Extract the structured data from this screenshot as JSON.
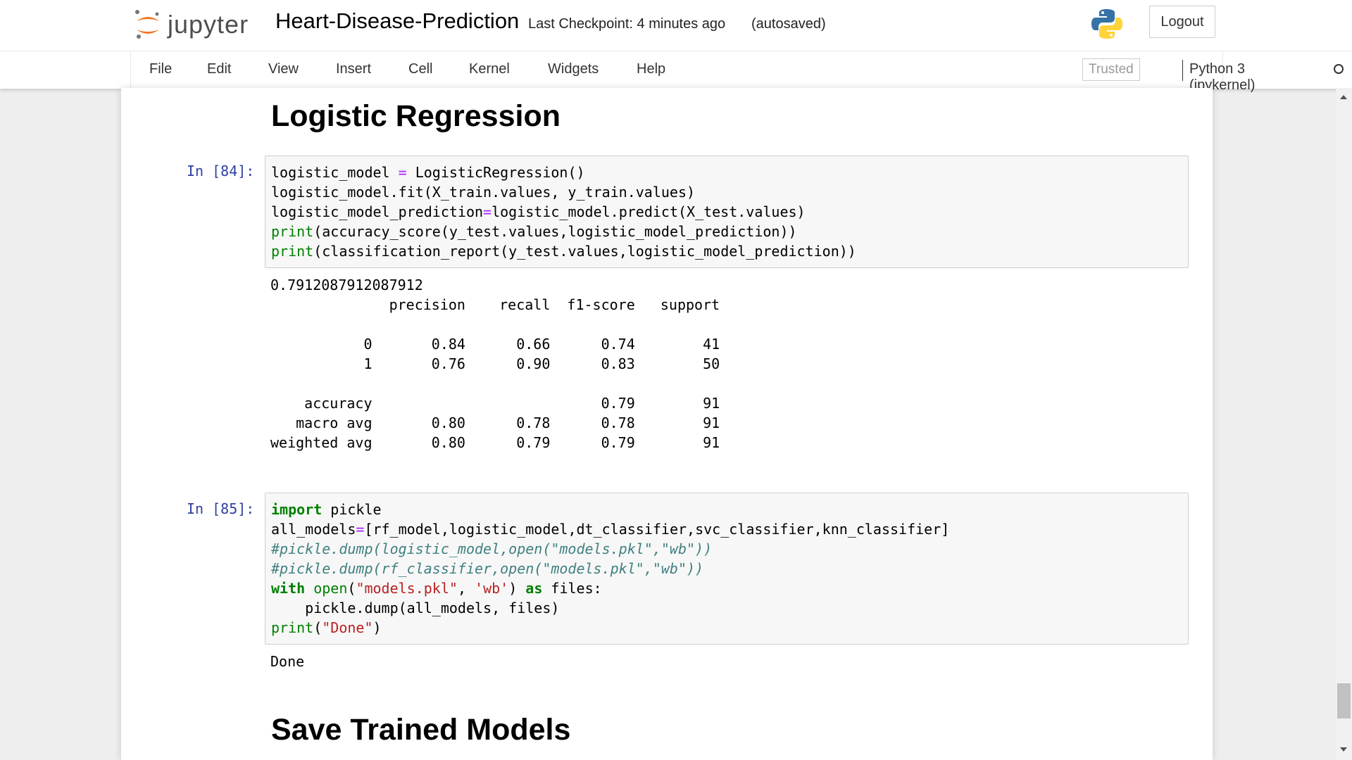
{
  "header": {
    "logo_text": "jupyter",
    "notebook_title": "Heart-Disease-Prediction",
    "checkpoint": "Last Checkpoint: 4 minutes ago",
    "autosave_status": "(autosaved)",
    "logout_label": "Logout"
  },
  "menubar": {
    "items": [
      "File",
      "Edit",
      "View",
      "Insert",
      "Cell",
      "Kernel",
      "Widgets",
      "Help"
    ],
    "trusted_label": "Trusted",
    "kernel_name": "Python 3 (ipykernel)"
  },
  "cells": [
    {
      "type": "markdown",
      "text": "Logistic Regression"
    },
    {
      "type": "code",
      "prompt": "In [84]:",
      "lines": [
        "logistic_model = LogisticRegression()",
        "logistic_model.fit(X_train.values, y_train.values)",
        "logistic_model_prediction=logistic_model.predict(X_test.values)",
        "print(accuracy_score(y_test.values,logistic_model_prediction))",
        "print(classification_report(y_test.values,logistic_model_prediction))"
      ],
      "output": [
        "0.7912087912087912",
        "              precision    recall  f1-score   support",
        "",
        "           0       0.84      0.66      0.74        41",
        "           1       0.76      0.90      0.83        50",
        "",
        "    accuracy                           0.79        91",
        "   macro avg       0.80      0.78      0.78        91",
        "weighted avg       0.80      0.79      0.79        91"
      ]
    },
    {
      "type": "code",
      "prompt": "In [85]:",
      "lines": [
        "import pickle",
        "all_models=[rf_model,logistic_model,dt_classifier,svc_classifier,knn_classifier]",
        "#pickle.dump(logistic_model,open(\"models.pkl\",\"wb\"))",
        "#pickle.dump(rf_classifier,open(\"models.pkl\",\"wb\"))",
        "with open(\"models.pkl\", 'wb') as files:",
        "    pickle.dump(all_models, files)",
        "print(\"Done\")"
      ],
      "output": [
        "Done"
      ]
    },
    {
      "type": "markdown",
      "text": "Save Trained Models"
    }
  ],
  "colors": {
    "prompt": "#303f9f",
    "keyword": "#008000",
    "operator": "#aa22ff",
    "comment": "#408080",
    "string": "#ba2121",
    "logo_orange": "#f37726"
  }
}
